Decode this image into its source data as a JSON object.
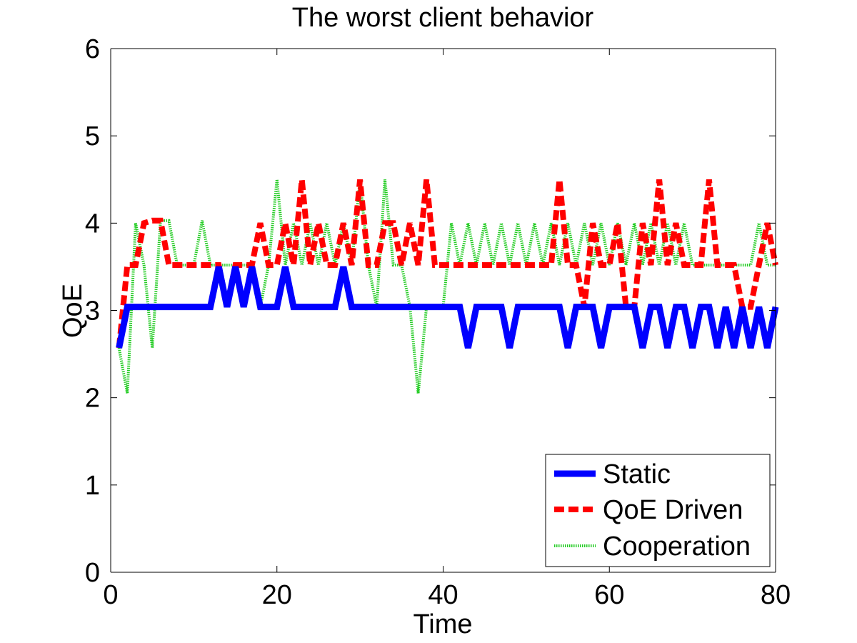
{
  "chart_data": {
    "type": "line",
    "title": "The worst client behavior",
    "xlabel": "Time",
    "ylabel": "QoE",
    "xlim": [
      0,
      80
    ],
    "ylim": [
      0,
      6
    ],
    "xticks": [
      0,
      20,
      40,
      60,
      80
    ],
    "yticks": [
      0,
      1,
      2,
      3,
      4,
      5,
      6
    ],
    "grid": false,
    "legend_position": "bottom-right",
    "series": [
      {
        "name": "Static",
        "color": "#0000ff",
        "style": "solid",
        "points": [
          [
            1,
            2.57
          ],
          [
            2,
            3.04
          ],
          [
            12,
            3.04
          ],
          [
            13,
            3.5
          ],
          [
            14,
            3.04
          ],
          [
            15,
            3.5
          ],
          [
            16,
            3.04
          ],
          [
            17,
            3.5
          ],
          [
            18,
            3.04
          ],
          [
            20,
            3.04
          ],
          [
            21,
            3.5
          ],
          [
            22,
            3.04
          ],
          [
            27,
            3.04
          ],
          [
            28,
            3.5
          ],
          [
            29,
            3.04
          ],
          [
            42,
            3.04
          ],
          [
            43,
            2.57
          ],
          [
            44,
            3.04
          ],
          [
            47,
            3.04
          ],
          [
            48,
            2.57
          ],
          [
            49,
            3.04
          ],
          [
            54,
            3.04
          ],
          [
            55,
            2.57
          ],
          [
            56,
            3.04
          ],
          [
            58,
            3.04
          ],
          [
            59,
            2.57
          ],
          [
            60,
            3.04
          ],
          [
            63,
            3.04
          ],
          [
            64,
            2.57
          ],
          [
            65,
            3.04
          ],
          [
            66,
            3.04
          ],
          [
            67,
            2.57
          ],
          [
            68,
            3.04
          ],
          [
            69,
            3.04
          ],
          [
            70,
            2.57
          ],
          [
            71,
            3.04
          ],
          [
            72,
            3.04
          ],
          [
            73,
            2.57
          ],
          [
            74,
            3.04
          ],
          [
            75,
            2.57
          ],
          [
            76,
            3.04
          ],
          [
            77,
            2.57
          ],
          [
            78,
            3.04
          ],
          [
            79,
            2.57
          ],
          [
            80,
            3.04
          ]
        ]
      },
      {
        "name": "QoE Driven",
        "color": "#ff0000",
        "style": "dashed",
        "points": [
          [
            1,
            2.57
          ],
          [
            2,
            3.52
          ],
          [
            3,
            3.52
          ],
          [
            4,
            4.0
          ],
          [
            5,
            4.03
          ],
          [
            6,
            4.03
          ],
          [
            7,
            3.52
          ],
          [
            13,
            3.52
          ],
          [
            14,
            3.04
          ],
          [
            15,
            3.52
          ],
          [
            16,
            3.52
          ],
          [
            17,
            3.52
          ],
          [
            18,
            4.0
          ],
          [
            19,
            3.52
          ],
          [
            20,
            3.52
          ],
          [
            21,
            4.0
          ],
          [
            22,
            3.52
          ],
          [
            23,
            4.5
          ],
          [
            24,
            3.52
          ],
          [
            25,
            4.0
          ],
          [
            26,
            3.52
          ],
          [
            27,
            3.52
          ],
          [
            28,
            4.0
          ],
          [
            29,
            3.52
          ],
          [
            30,
            4.5
          ],
          [
            31,
            3.52
          ],
          [
            32,
            3.52
          ],
          [
            33,
            4.0
          ],
          [
            34,
            4.0
          ],
          [
            35,
            3.52
          ],
          [
            36,
            4.0
          ],
          [
            37,
            3.52
          ],
          [
            38,
            4.5
          ],
          [
            39,
            3.52
          ],
          [
            42,
            3.52
          ],
          [
            43,
            3.52
          ],
          [
            53,
            3.52
          ],
          [
            54,
            4.5
          ],
          [
            55,
            3.52
          ],
          [
            56,
            3.52
          ],
          [
            57,
            3.04
          ],
          [
            58,
            4.0
          ],
          [
            59,
            3.52
          ],
          [
            60,
            3.52
          ],
          [
            61,
            4.0
          ],
          [
            62,
            3.04
          ],
          [
            63,
            3.04
          ],
          [
            64,
            4.0
          ],
          [
            65,
            3.52
          ],
          [
            66,
            4.5
          ],
          [
            67,
            3.52
          ],
          [
            68,
            4.0
          ],
          [
            69,
            3.52
          ],
          [
            71,
            3.52
          ],
          [
            72,
            4.5
          ],
          [
            73,
            3.52
          ],
          [
            75,
            3.52
          ],
          [
            76,
            3.04
          ],
          [
            77,
            3.04
          ],
          [
            78,
            3.52
          ],
          [
            79,
            4.0
          ],
          [
            80,
            3.52
          ]
        ]
      },
      {
        "name": "Cooperation",
        "color": "#22cc22",
        "style": "dotted",
        "points": [
          [
            1,
            2.57
          ],
          [
            2,
            2.05
          ],
          [
            3,
            4.0
          ],
          [
            4,
            3.52
          ],
          [
            5,
            2.57
          ],
          [
            6,
            4.03
          ],
          [
            7,
            4.03
          ],
          [
            8,
            3.52
          ],
          [
            10,
            3.52
          ],
          [
            11,
            4.03
          ],
          [
            12,
            3.52
          ],
          [
            16,
            3.52
          ],
          [
            17,
            3.52
          ],
          [
            18,
            3.04
          ],
          [
            19,
            3.52
          ],
          [
            20,
            4.5
          ],
          [
            21,
            3.52
          ],
          [
            22,
            4.0
          ],
          [
            23,
            3.52
          ],
          [
            24,
            4.0
          ],
          [
            25,
            3.52
          ],
          [
            26,
            4.0
          ],
          [
            27,
            3.52
          ],
          [
            28,
            4.0
          ],
          [
            29,
            3.52
          ],
          [
            30,
            4.5
          ],
          [
            31,
            3.52
          ],
          [
            32,
            3.04
          ],
          [
            33,
            4.5
          ],
          [
            34,
            3.52
          ],
          [
            35,
            3.52
          ],
          [
            36,
            3.04
          ],
          [
            37,
            2.05
          ],
          [
            38,
            3.04
          ],
          [
            40,
            3.04
          ],
          [
            41,
            4.0
          ],
          [
            42,
            3.52
          ],
          [
            43,
            4.0
          ],
          [
            44,
            3.52
          ],
          [
            45,
            4.0
          ],
          [
            46,
            3.52
          ],
          [
            47,
            4.0
          ],
          [
            48,
            3.52
          ],
          [
            49,
            4.0
          ],
          [
            50,
            3.52
          ],
          [
            51,
            4.0
          ],
          [
            52,
            3.52
          ],
          [
            53,
            4.0
          ],
          [
            54,
            3.52
          ],
          [
            55,
            4.0
          ],
          [
            56,
            3.52
          ],
          [
            57,
            4.0
          ],
          [
            58,
            3.52
          ],
          [
            59,
            4.0
          ],
          [
            60,
            3.52
          ],
          [
            61,
            4.0
          ],
          [
            62,
            3.52
          ],
          [
            63,
            4.0
          ],
          [
            64,
            3.52
          ],
          [
            65,
            4.0
          ],
          [
            66,
            3.52
          ],
          [
            67,
            4.0
          ],
          [
            68,
            3.52
          ],
          [
            69,
            4.0
          ],
          [
            70,
            3.52
          ],
          [
            75,
            3.52
          ],
          [
            76,
            3.52
          ],
          [
            77,
            3.52
          ],
          [
            78,
            4.0
          ],
          [
            79,
            3.52
          ],
          [
            80,
            3.52
          ]
        ]
      }
    ]
  }
}
